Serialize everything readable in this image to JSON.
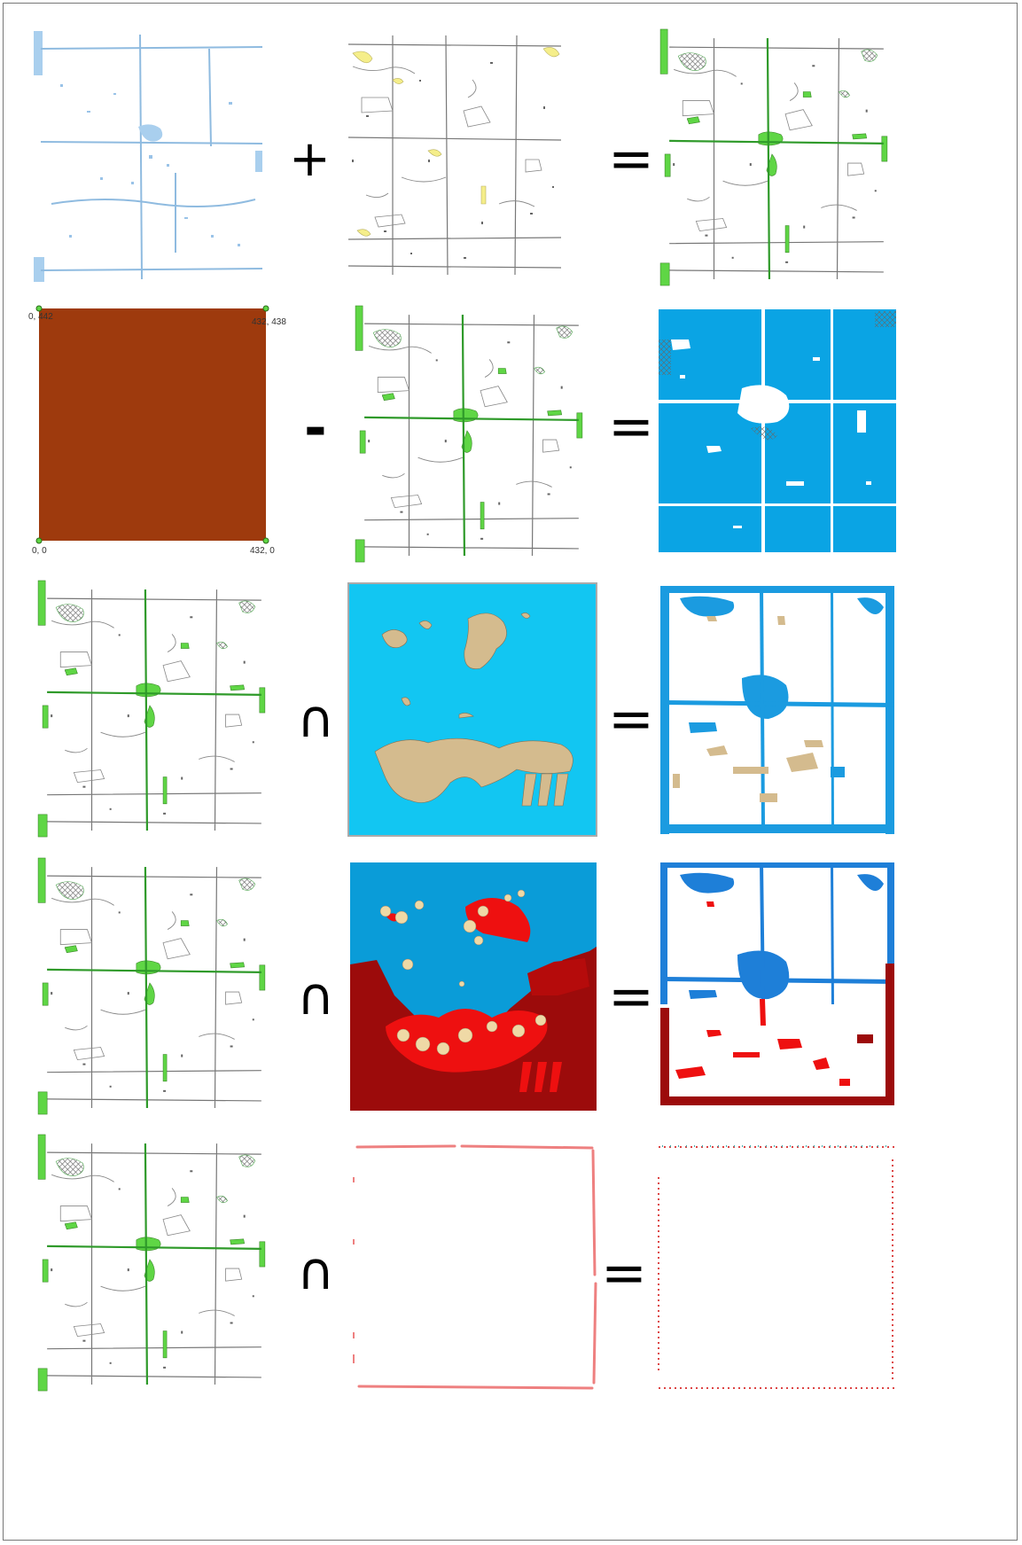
{
  "operators": {
    "row1": "+",
    "row2": "-",
    "row3": "∩",
    "row4": "∩",
    "row5": "∩",
    "equals": "="
  },
  "extent_labels": {
    "top_left": "0, 442",
    "top_right": "432, 438",
    "bottom_left": "0, 0",
    "bottom_right": "432, 0"
  },
  "colors": {
    "water_blue": "#a9cfee",
    "yellow_fill": "#f5ee8a",
    "green_fill": "#5fd645",
    "brown_fill": "#9e3a0d",
    "bright_blue": "#0aa4e4",
    "cyan": "#12c6f2",
    "tan": "#d4bb8e",
    "mid_blue": "#1e7fd8",
    "red": "#ee1010",
    "dark_red": "#9c0b0b",
    "pink_red": "#ee8080"
  },
  "panel_icons": {
    "r1c1": "map-water-features-icon",
    "r1c2": "map-wetland-outlines-icon",
    "r1c3": "map-union-result-icon",
    "r2c1": "extent-rectangle-icon",
    "r2c3": "map-difference-result-icon",
    "r3c2": "map-zones-icon",
    "r4c2": "map-risk-zones-icon",
    "r5c2": "map-boundary-lines-icon"
  }
}
